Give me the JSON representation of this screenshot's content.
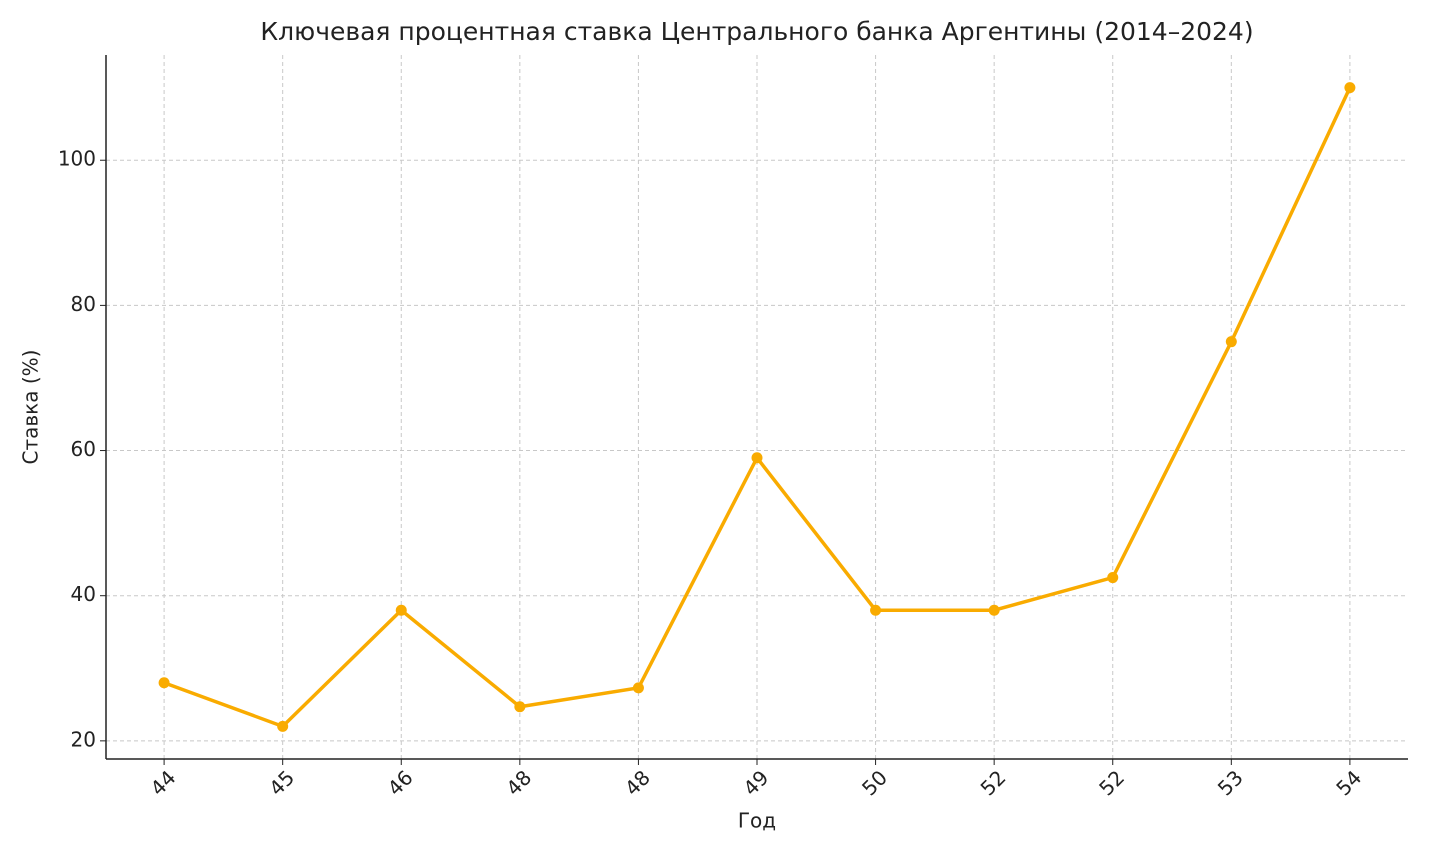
{
  "chart_data": {
    "type": "line",
    "title": "Ключевая процентная ставка Центрального банка Аргентины (2014–2024)",
    "x_label": "Год",
    "y_label": "Ставка (%)",
    "categories": [
      "44",
      "45",
      "46",
      "48",
      "48",
      "49",
      "50",
      "52",
      "52",
      "53",
      "54"
    ],
    "series": [
      {
        "name": "Ставка",
        "color": "#f9ab00",
        "values": [
          28,
          22,
          38,
          24.7,
          27.3,
          59,
          38,
          38,
          42.5,
          75,
          110
        ]
      }
    ],
    "ylim": [
      17.5,
      114.5
    ],
    "yticks": [
      20,
      40,
      60,
      80,
      100
    ],
    "grid": true
  }
}
